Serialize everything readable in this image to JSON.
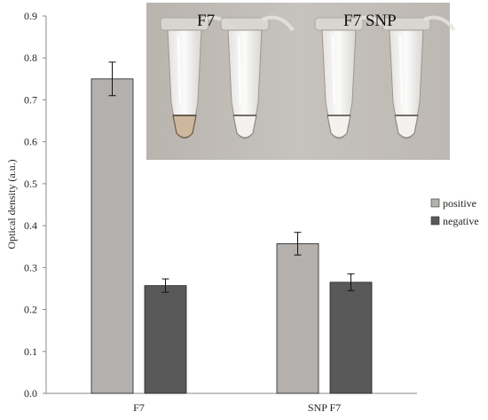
{
  "chart_data": {
    "type": "bar",
    "categories": [
      "F7",
      "SNP F7"
    ],
    "series": [
      {
        "name": "positive",
        "values": [
          0.75,
          0.357
        ],
        "errors": [
          0.04,
          0.027
        ],
        "color": "#b3b0ad"
      },
      {
        "name": "negative",
        "values": [
          0.257,
          0.265
        ],
        "errors": [
          0.016,
          0.02
        ],
        "color": "#595959"
      }
    ],
    "ylabel": "Optical density (a.u.)",
    "xlabel": "",
    "ylim": [
      0,
      0.9
    ],
    "yticks": [
      0.0,
      0.1,
      0.2,
      0.3,
      0.4,
      0.5,
      0.6,
      0.7,
      0.8,
      0.9
    ],
    "grid": false,
    "legend_position": "right",
    "inset_photo": {
      "labels": [
        "F7",
        "F7 SNP"
      ],
      "tubes": [
        {
          "contents": "turbid"
        },
        {
          "contents": "clear"
        },
        {
          "contents": "clear"
        },
        {
          "contents": "clear"
        }
      ]
    }
  }
}
